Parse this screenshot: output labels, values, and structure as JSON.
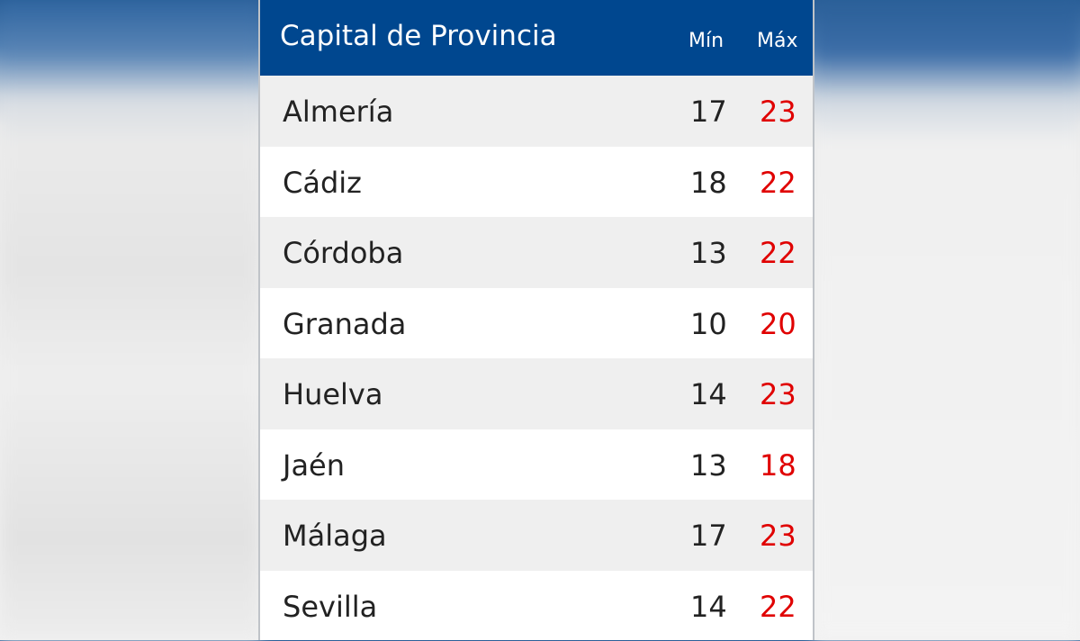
{
  "table": {
    "header": {
      "title": "Capital de Provincia",
      "min_label": "Mín",
      "max_label": "Máx"
    },
    "rows": [
      {
        "city": "Almería",
        "min": "17",
        "max": "23"
      },
      {
        "city": "Cádiz",
        "min": "18",
        "max": "22"
      },
      {
        "city": "Córdoba",
        "min": "13",
        "max": "22"
      },
      {
        "city": "Granada",
        "min": "10",
        "max": "20"
      },
      {
        "city": "Huelva",
        "min": "14",
        "max": "23"
      },
      {
        "city": "Jaén",
        "min": "13",
        "max": "18"
      },
      {
        "city": "Málaga",
        "min": "17",
        "max": "23"
      },
      {
        "city": "Sevilla",
        "min": "14",
        "max": "22"
      }
    ]
  },
  "colors": {
    "header": "#00478f",
    "max_value": "#e00000",
    "row_alt": "#efefef"
  }
}
